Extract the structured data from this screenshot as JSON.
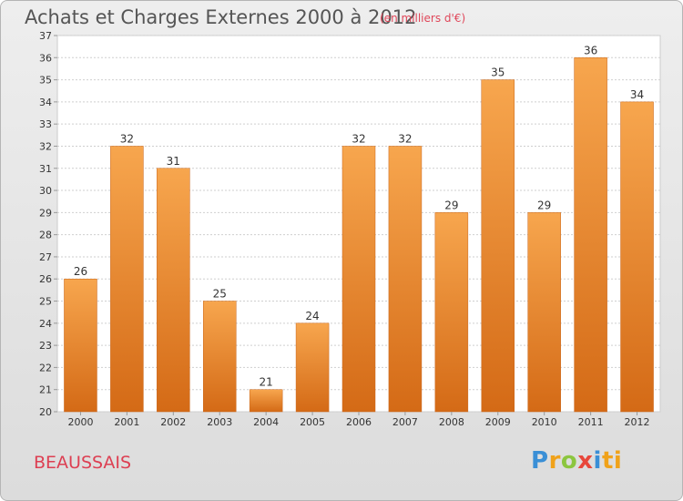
{
  "header": {
    "title": "Achats et Charges Externes 2000 à 2012",
    "unit": "(en milliers d'€)"
  },
  "footer": {
    "commune": "BEAUSSAIS",
    "brand_letters": [
      "P",
      "r",
      "o",
      "x",
      "i",
      "ti"
    ]
  },
  "colors": {
    "bar_top": "#f7a64e",
    "bar_bottom": "#d46a16",
    "title": "#555555",
    "accent": "#dd3f52"
  },
  "chart_data": {
    "type": "bar",
    "categories": [
      "2000",
      "2001",
      "2002",
      "2003",
      "2004",
      "2005",
      "2006",
      "2007",
      "2008",
      "2009",
      "2010",
      "2011",
      "2012"
    ],
    "values": [
      26,
      32,
      31,
      25,
      21,
      24,
      32,
      32,
      29,
      35,
      29,
      36,
      34
    ],
    "data_labels": [
      "26",
      "32",
      "31",
      "25",
      "21",
      "24",
      "32",
      "32",
      "29",
      "35",
      "29",
      "36",
      "34"
    ],
    "ylim": [
      20,
      37
    ],
    "yticks": [
      20,
      21,
      22,
      23,
      24,
      25,
      26,
      27,
      28,
      29,
      30,
      31,
      32,
      33,
      34,
      35,
      36,
      37
    ],
    "grid": true,
    "title": "Achats et Charges Externes 2000 à 2012",
    "xlabel": "",
    "ylabel": ""
  }
}
